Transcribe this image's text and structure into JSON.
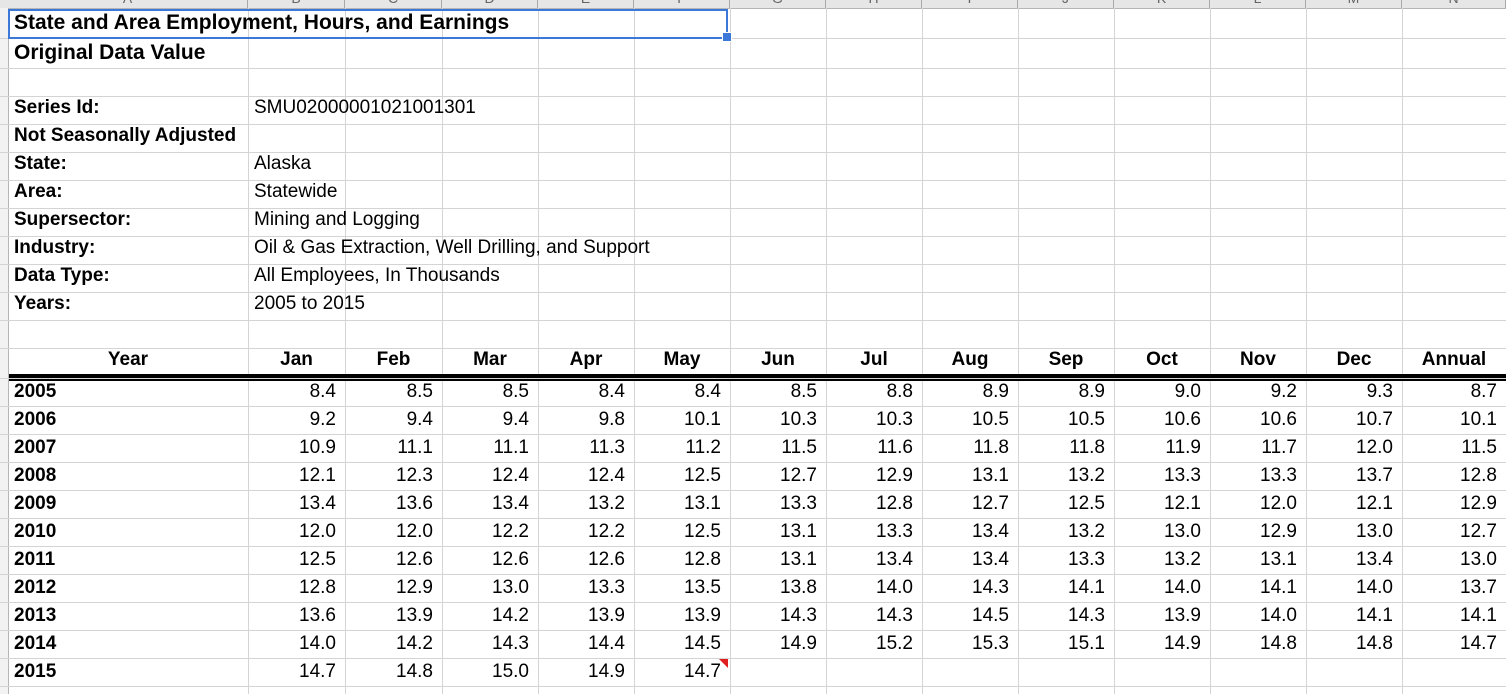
{
  "title": "State and Area Employment, Hours, and Earnings",
  "subtitle": "Original Data Value",
  "meta": [
    {
      "label": "Series Id:",
      "value": "SMU02000001021001301"
    },
    {
      "label": "Not Seasonally Adjusted",
      "value": ""
    },
    {
      "label": "State:",
      "value": "Alaska"
    },
    {
      "label": "Area:",
      "value": "Statewide"
    },
    {
      "label": "Supersector:",
      "value": "Mining and Logging"
    },
    {
      "label": "Industry:",
      "value": "Oil & Gas Extraction, Well Drilling, and Support"
    },
    {
      "label": "Data Type:",
      "value": "All Employees, In Thousands"
    },
    {
      "label": "Years:",
      "value": "2005 to 2015"
    }
  ],
  "column_letters": [
    "A",
    "B",
    "C",
    "D",
    "E",
    "F",
    "G",
    "H",
    "I",
    "J",
    "K",
    "L",
    "M",
    "N"
  ],
  "table": {
    "headers": [
      "Year",
      "Jan",
      "Feb",
      "Mar",
      "Apr",
      "May",
      "Jun",
      "Jul",
      "Aug",
      "Sep",
      "Oct",
      "Nov",
      "Dec",
      "Annual"
    ],
    "rows": [
      [
        "2005",
        "8.4",
        "8.5",
        "8.5",
        "8.4",
        "8.4",
        "8.5",
        "8.8",
        "8.9",
        "8.9",
        "9.0",
        "9.2",
        "9.3",
        "8.7"
      ],
      [
        "2006",
        "9.2",
        "9.4",
        "9.4",
        "9.8",
        "10.1",
        "10.3",
        "10.3",
        "10.5",
        "10.5",
        "10.6",
        "10.6",
        "10.7",
        "10.1"
      ],
      [
        "2007",
        "10.9",
        "11.1",
        "11.1",
        "11.3",
        "11.2",
        "11.5",
        "11.6",
        "11.8",
        "11.8",
        "11.9",
        "11.7",
        "12.0",
        "11.5"
      ],
      [
        "2008",
        "12.1",
        "12.3",
        "12.4",
        "12.4",
        "12.5",
        "12.7",
        "12.9",
        "13.1",
        "13.2",
        "13.3",
        "13.3",
        "13.7",
        "12.8"
      ],
      [
        "2009",
        "13.4",
        "13.6",
        "13.4",
        "13.2",
        "13.1",
        "13.3",
        "12.8",
        "12.7",
        "12.5",
        "12.1",
        "12.0",
        "12.1",
        "12.9"
      ],
      [
        "2010",
        "12.0",
        "12.0",
        "12.2",
        "12.2",
        "12.5",
        "13.1",
        "13.3",
        "13.4",
        "13.2",
        "13.0",
        "12.9",
        "13.0",
        "12.7"
      ],
      [
        "2011",
        "12.5",
        "12.6",
        "12.6",
        "12.6",
        "12.8",
        "13.1",
        "13.4",
        "13.4",
        "13.3",
        "13.2",
        "13.1",
        "13.4",
        "13.0"
      ],
      [
        "2012",
        "12.8",
        "12.9",
        "13.0",
        "13.3",
        "13.5",
        "13.8",
        "14.0",
        "14.3",
        "14.1",
        "14.0",
        "14.1",
        "14.0",
        "13.7"
      ],
      [
        "2013",
        "13.6",
        "13.9",
        "14.2",
        "13.9",
        "13.9",
        "14.3",
        "14.3",
        "14.5",
        "14.3",
        "13.9",
        "14.0",
        "14.1",
        "14.1"
      ],
      [
        "2014",
        "14.0",
        "14.2",
        "14.3",
        "14.4",
        "14.5",
        "14.9",
        "15.2",
        "15.3",
        "15.1",
        "14.9",
        "14.8",
        "14.8",
        "14.7"
      ],
      [
        "2015",
        "14.7",
        "14.8",
        "15.0",
        "14.9",
        "14.7",
        "",
        "",
        "",
        "",
        "",
        "",
        "",
        ""
      ]
    ]
  },
  "selection_color": "#3b78d8",
  "comment_indicator_color": "#e02020"
}
